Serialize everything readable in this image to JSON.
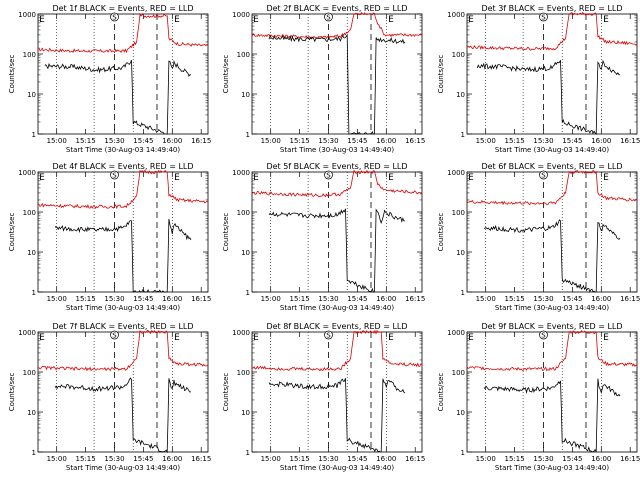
{
  "figure": {
    "panels": [
      {
        "title": "Det 1f BLACK = Events, RED = LLD"
      },
      {
        "title": "Det 2f BLACK = Events, RED = LLD"
      },
      {
        "title": "Det 3f BLACK = Events, RED = LLD"
      },
      {
        "title": "Det 4f BLACK = Events, RED = LLD"
      },
      {
        "title": "Det 5f BLACK = Events, RED = LLD"
      },
      {
        "title": "Det 6f BLACK = Events, RED = LLD"
      },
      {
        "title": "Det 7f BLACK = Events, RED = LLD"
      },
      {
        "title": "Det 8f BLACK = Events, RED = LLD"
      },
      {
        "title": "Det 9f BLACK = Events, RED = LLD"
      }
    ],
    "xlabel": "Start Time (30-Aug-03 14:49:40)",
    "ylabel": "Counts/sec",
    "colors": {
      "events": "#000000",
      "lld": "#e00000",
      "background": "#ffffff"
    }
  },
  "chart_data": [
    {
      "type": "line",
      "title": "Det 1f BLACK = Events, RED = LLD",
      "xlabel": "Start Time (30-Aug-03 14:49:40)",
      "ylabel": "Counts/sec",
      "x_ticks": [
        "15:00",
        "15:15",
        "15:30",
        "15:45",
        "16:00",
        "16:15"
      ],
      "y_ticks": [
        "1",
        "10",
        "100",
        "1000"
      ],
      "ylim": [
        1,
        1000
      ],
      "yscale": "log",
      "annotations": [
        "S",
        "E"
      ],
      "series": [
        {
          "values": [
            [
              0,
              130
            ],
            [
              20,
              120
            ],
            [
              40,
              118
            ],
            [
              52,
              120
            ],
            [
              58,
              200
            ],
            [
              60,
              900
            ],
            [
              76,
              900
            ],
            [
              77,
              240
            ],
            [
              82,
              180
            ],
            [
              100,
              160
            ]
          ]
        },
        {
          "values": [
            [
              4,
              50
            ],
            [
              20,
              48
            ],
            [
              35,
              40
            ],
            [
              50,
              45
            ],
            [
              55,
              70
            ],
            [
              56,
              2
            ],
            [
              76,
              1
            ],
            [
              77,
              70
            ],
            [
              79,
              40
            ],
            [
              80,
              60
            ],
            [
              85,
              40
            ],
            [
              90,
              30
            ]
          ]
        }
      ]
    },
    {
      "type": "line",
      "title": "Det 2f BLACK = Events, RED = LLD",
      "xlabel": "Start Time (30-Aug-03 14:49:40)",
      "ylabel": "Counts/sec",
      "x_ticks": [
        "15:00",
        "15:15",
        "15:30",
        "15:45",
        "16:00",
        "16:15"
      ],
      "y_ticks": [
        "1",
        "10",
        "100",
        "1000"
      ],
      "ylim": [
        1,
        1000
      ],
      "yscale": "log",
      "annotations": [
        "S",
        "E"
      ],
      "series": [
        {
          "values": [
            [
              0,
              300
            ],
            [
              20,
              280
            ],
            [
              40,
              260
            ],
            [
              52,
              280
            ],
            [
              58,
              400
            ],
            [
              60,
              1000
            ],
            [
              72,
              1000
            ],
            [
              74,
              600
            ],
            [
              78,
              300
            ],
            [
              100,
              300
            ]
          ]
        },
        {
          "values": [
            [
              10,
              260
            ],
            [
              20,
              240
            ],
            [
              40,
              230
            ],
            [
              52,
              240
            ],
            [
              56,
              300
            ],
            [
              57,
              1
            ],
            [
              72,
              1
            ],
            [
              73,
              240
            ],
            [
              80,
              220
            ],
            [
              90,
              200
            ]
          ]
        }
      ]
    },
    {
      "type": "line",
      "title": "Det 3f BLACK = Events, RED = LLD",
      "xlabel": "Start Time (30-Aug-03 14:49:40)",
      "ylabel": "Counts/sec",
      "x_ticks": [
        "15:00",
        "15:15",
        "15:30",
        "15:45",
        "16:00",
        "16:15"
      ],
      "y_ticks": [
        "1",
        "10",
        "100",
        "1000"
      ],
      "ylim": [
        1,
        1000
      ],
      "yscale": "log",
      "annotations": [
        "S",
        "E"
      ],
      "series": [
        {
          "values": [
            [
              0,
              150
            ],
            [
              20,
              140
            ],
            [
              40,
              135
            ],
            [
              52,
              140
            ],
            [
              58,
              250
            ],
            [
              60,
              1000
            ],
            [
              76,
              1000
            ],
            [
              77,
              280
            ],
            [
              82,
              200
            ],
            [
              100,
              180
            ]
          ]
        },
        {
          "values": [
            [
              6,
              50
            ],
            [
              20,
              48
            ],
            [
              35,
              40
            ],
            [
              50,
              45
            ],
            [
              55,
              70
            ],
            [
              56,
              2
            ],
            [
              76,
              1
            ],
            [
              77,
              70
            ],
            [
              79,
              40
            ],
            [
              80,
              60
            ],
            [
              85,
              40
            ],
            [
              90,
              30
            ]
          ]
        }
      ]
    },
    {
      "type": "line",
      "title": "Det 4f BLACK = Events, RED = LLD",
      "xlabel": "Start Time (30-Aug-03 14:49:40)",
      "ylabel": "Counts/sec",
      "x_ticks": [
        "15:00",
        "15:15",
        "15:30",
        "15:45",
        "16:00",
        "16:15"
      ],
      "y_ticks": [
        "1",
        "10",
        "100",
        "1000"
      ],
      "ylim": [
        1,
        1000
      ],
      "yscale": "log",
      "annotations": [
        "S",
        "E"
      ],
      "series": [
        {
          "values": [
            [
              0,
              150
            ],
            [
              20,
              140
            ],
            [
              40,
              135
            ],
            [
              52,
              140
            ],
            [
              58,
              250
            ],
            [
              60,
              1000
            ],
            [
              76,
              1000
            ],
            [
              77,
              280
            ],
            [
              82,
              200
            ],
            [
              100,
              180
            ]
          ]
        },
        {
          "values": [
            [
              10,
              40
            ],
            [
              20,
              38
            ],
            [
              35,
              35
            ],
            [
              50,
              40
            ],
            [
              55,
              60
            ],
            [
              56,
              1
            ],
            [
              76,
              1
            ],
            [
              77,
              60
            ],
            [
              79,
              30
            ],
            [
              80,
              50
            ],
            [
              85,
              30
            ],
            [
              90,
              20
            ]
          ]
        }
      ]
    },
    {
      "type": "line",
      "title": "Det 5f BLACK = Events, RED = LLD",
      "xlabel": "Start Time (30-Aug-03 14:49:40)",
      "ylabel": "Counts/sec",
      "x_ticks": [
        "15:00",
        "15:15",
        "15:30",
        "15:45",
        "16:00",
        "16:15"
      ],
      "y_ticks": [
        "1",
        "10",
        "100",
        "1000"
      ],
      "ylim": [
        1,
        1000
      ],
      "yscale": "log",
      "annotations": [
        "S",
        "E"
      ],
      "series": [
        {
          "values": [
            [
              0,
              300
            ],
            [
              20,
              280
            ],
            [
              40,
              260
            ],
            [
              52,
              280
            ],
            [
              58,
              400
            ],
            [
              60,
              1000
            ],
            [
              72,
              1000
            ],
            [
              74,
              500
            ],
            [
              78,
              350
            ],
            [
              100,
              300
            ]
          ]
        },
        {
          "values": [
            [
              10,
              90
            ],
            [
              20,
              85
            ],
            [
              35,
              80
            ],
            [
              50,
              85
            ],
            [
              55,
              120
            ],
            [
              56,
              2
            ],
            [
              72,
              1
            ],
            [
              73,
              120
            ],
            [
              76,
              60
            ],
            [
              78,
              100
            ],
            [
              85,
              70
            ],
            [
              90,
              60
            ]
          ]
        }
      ]
    },
    {
      "type": "line",
      "title": "Det 6f BLACK = Events, RED = LLD",
      "xlabel": "Start Time (30-Aug-03 14:49:40)",
      "ylabel": "Counts/sec",
      "x_ticks": [
        "15:00",
        "15:15",
        "15:30",
        "15:45",
        "16:00",
        "16:15"
      ],
      "y_ticks": [
        "1",
        "10",
        "100",
        "1000"
      ],
      "ylim": [
        1,
        1000
      ],
      "yscale": "log",
      "annotations": [
        "S",
        "E"
      ],
      "series": [
        {
          "values": [
            [
              0,
              180
            ],
            [
              20,
              170
            ],
            [
              40,
              165
            ],
            [
              52,
              170
            ],
            [
              58,
              300
            ],
            [
              60,
              1000
            ],
            [
              76,
              1000
            ],
            [
              77,
              300
            ],
            [
              82,
              220
            ],
            [
              100,
              200
            ]
          ]
        },
        {
          "values": [
            [
              10,
              40
            ],
            [
              20,
              38
            ],
            [
              35,
              35
            ],
            [
              50,
              40
            ],
            [
              55,
              60
            ],
            [
              56,
              2
            ],
            [
              76,
              1
            ],
            [
              77,
              60
            ],
            [
              79,
              30
            ],
            [
              80,
              50
            ],
            [
              85,
              30
            ],
            [
              90,
              22
            ]
          ]
        }
      ]
    },
    {
      "type": "line",
      "title": "Det 7f BLACK = Events, RED = LLD",
      "xlabel": "Start Time (30-Aug-03 14:49:40)",
      "ylabel": "Counts/sec",
      "x_ticks": [
        "15:00",
        "15:15",
        "15:30",
        "15:45",
        "16:00",
        "16:15"
      ],
      "y_ticks": [
        "1",
        "10",
        "100",
        "1000"
      ],
      "ylim": [
        1,
        1000
      ],
      "yscale": "log",
      "annotations": [
        "S",
        "E"
      ],
      "series": [
        {
          "values": [
            [
              0,
              130
            ],
            [
              20,
              120
            ],
            [
              40,
              118
            ],
            [
              52,
              120
            ],
            [
              58,
              220
            ],
            [
              60,
              1000
            ],
            [
              76,
              1000
            ],
            [
              77,
              220
            ],
            [
              82,
              160
            ],
            [
              100,
              150
            ]
          ]
        },
        {
          "values": [
            [
              10,
              45
            ],
            [
              20,
              42
            ],
            [
              35,
              38
            ],
            [
              50,
              42
            ],
            [
              55,
              65
            ],
            [
              56,
              2
            ],
            [
              76,
              1
            ],
            [
              77,
              65
            ],
            [
              79,
              35
            ],
            [
              80,
              55
            ],
            [
              85,
              40
            ],
            [
              90,
              32
            ]
          ]
        }
      ]
    },
    {
      "type": "line",
      "title": "Det 8f BLACK = Events, RED = LLD",
      "xlabel": "Start Time (30-Aug-03 14:49:40)",
      "ylabel": "Counts/sec",
      "x_ticks": [
        "15:00",
        "15:15",
        "15:30",
        "15:45",
        "16:00",
        "16:15"
      ],
      "y_ticks": [
        "1",
        "10",
        "100",
        "1000"
      ],
      "ylim": [
        1,
        1000
      ],
      "yscale": "log",
      "annotations": [
        "S",
        "E"
      ],
      "series": [
        {
          "values": [
            [
              0,
              130
            ],
            [
              20,
              120
            ],
            [
              40,
              118
            ],
            [
              52,
              120
            ],
            [
              58,
              220
            ],
            [
              60,
              1000
            ],
            [
              76,
              1000
            ],
            [
              77,
              220
            ],
            [
              82,
              160
            ],
            [
              100,
              150
            ]
          ]
        },
        {
          "values": [
            [
              10,
              50
            ],
            [
              20,
              48
            ],
            [
              35,
              42
            ],
            [
              50,
              45
            ],
            [
              55,
              70
            ],
            [
              56,
              2
            ],
            [
              76,
              1
            ],
            [
              77,
              70
            ],
            [
              79,
              40
            ],
            [
              80,
              60
            ],
            [
              85,
              40
            ],
            [
              90,
              30
            ]
          ]
        }
      ]
    },
    {
      "type": "line",
      "title": "Det 9f BLACK = Events, RED = LLD",
      "xlabel": "Start Time (30-Aug-03 14:49:40)",
      "ylabel": "Counts/sec",
      "x_ticks": [
        "15:00",
        "15:15",
        "15:30",
        "15:45",
        "16:00",
        "16:15"
      ],
      "y_ticks": [
        "1",
        "10",
        "100",
        "1000"
      ],
      "ylim": [
        1,
        1000
      ],
      "yscale": "log",
      "annotations": [
        "S",
        "E"
      ],
      "series": [
        {
          "values": [
            [
              0,
              130
            ],
            [
              20,
              120
            ],
            [
              40,
              118
            ],
            [
              52,
              120
            ],
            [
              58,
              220
            ],
            [
              60,
              1000
            ],
            [
              76,
              1000
            ],
            [
              77,
              220
            ],
            [
              82,
              160
            ],
            [
              100,
              150
            ]
          ]
        },
        {
          "values": [
            [
              10,
              40
            ],
            [
              20,
              38
            ],
            [
              35,
              35
            ],
            [
              50,
              40
            ],
            [
              55,
              60
            ],
            [
              56,
              2
            ],
            [
              76,
              1
            ],
            [
              77,
              60
            ],
            [
              79,
              30
            ],
            [
              80,
              50
            ],
            [
              85,
              35
            ],
            [
              90,
              25
            ]
          ]
        }
      ]
    }
  ]
}
